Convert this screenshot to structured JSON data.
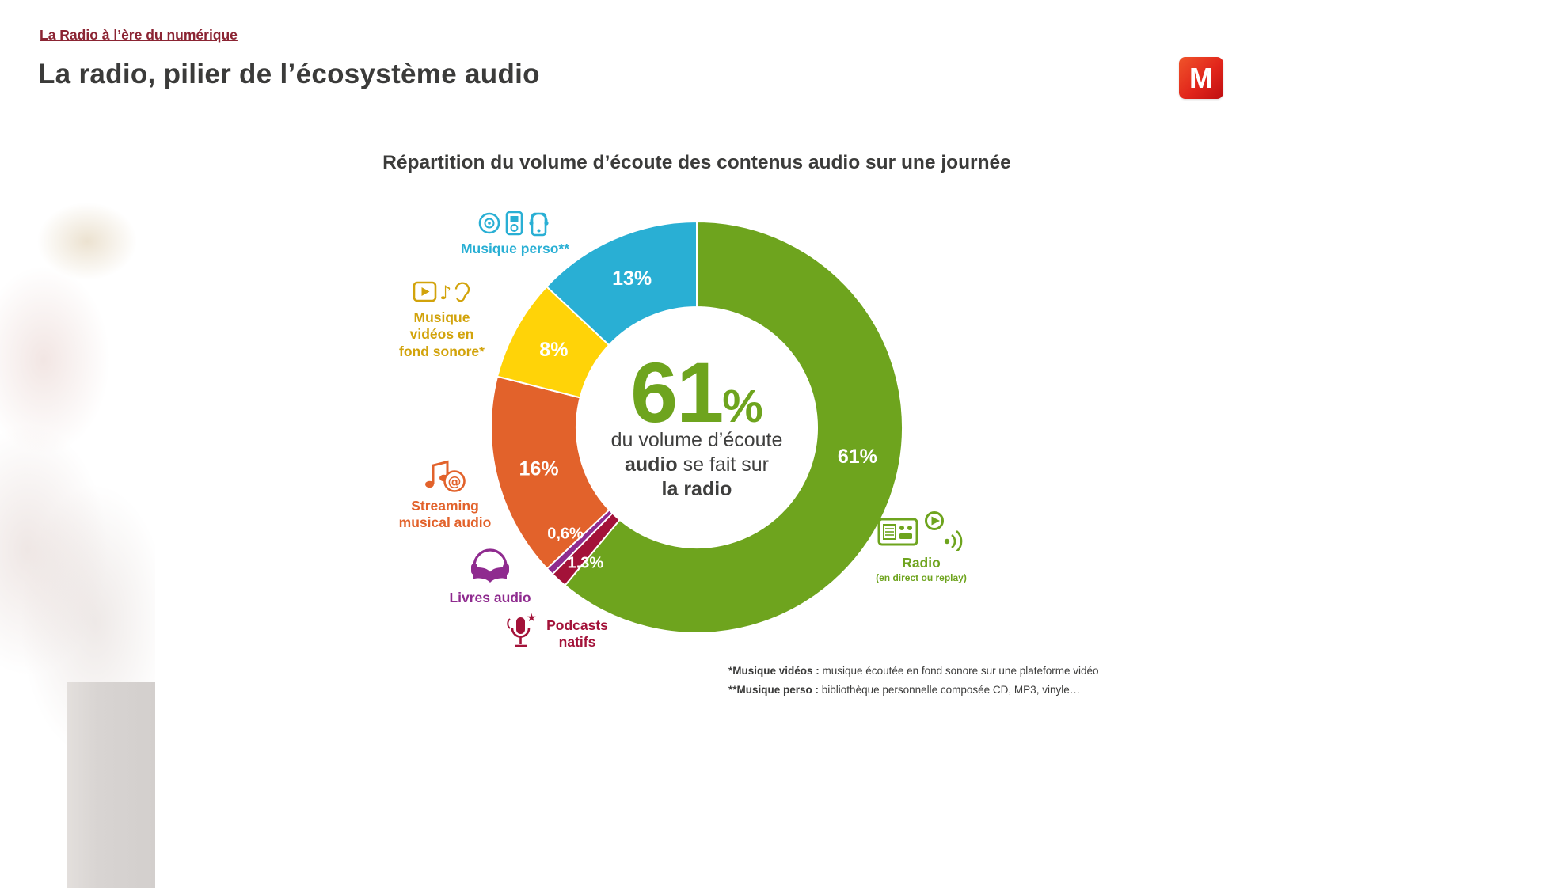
{
  "page": {
    "eyebrow": "La Radio à l’ère du numérique",
    "title": "La radio, pilier de l’écosystème audio",
    "logo_letter": "M"
  },
  "colors": {
    "accent_maroon": "#8B2433",
    "title_gray": "#3B3B3A",
    "videos_label_gold": "#D2A30B",
    "logo_red": "#E1251B"
  },
  "chart_data": {
    "type": "donut",
    "title": "Répartition du volume d’écoute des contenus audio sur une journée",
    "unit": "%",
    "start": "top",
    "direction": "clockwise",
    "segments": [
      {
        "label": "Radio (en direct ou replay)",
        "value": 61,
        "display": "61%",
        "color": "#6EA41E"
      },
      {
        "label": "Podcasts natifs",
        "value": 1.3,
        "display": "1,3%",
        "color": "#A31239"
      },
      {
        "label": "Livres audio",
        "value": 0.6,
        "display": "0,6%",
        "color": "#8F2B8F"
      },
      {
        "label": "Streaming musical audio",
        "value": 16,
        "display": "16%",
        "color": "#E2622B"
      },
      {
        "label": "Musique vidéos en fond sonore",
        "value": 8,
        "display": "8%",
        "color": "#FFD308"
      },
      {
        "label": "Musique perso",
        "value": 13,
        "display": "13%",
        "color": "#29AFD4"
      }
    ],
    "center": {
      "value": "61",
      "percent_sign": "%",
      "line1": "du volume d’écoute",
      "line2_bold": "audio",
      "line2_rest": " se fait sur",
      "line3": "la radio"
    }
  },
  "callouts": {
    "musique_perso": "Musique perso**",
    "musique_videos": "Musique vidéos en fond sonore*",
    "streaming": "Streaming musical audio",
    "livres_audio": "Livres audio",
    "podcasts": "Podcasts natifs",
    "radio": "Radio",
    "radio_sub": "(en direct ou replay)"
  },
  "footnotes": [
    {
      "bold": "*Musique vidéos :",
      "text": " musique écoutée en fond sonore sur une plateforme vidéo"
    },
    {
      "bold": "**Musique perso :",
      "text": " bibliothèque personnelle composée CD, MP3, vinyle…"
    }
  ]
}
